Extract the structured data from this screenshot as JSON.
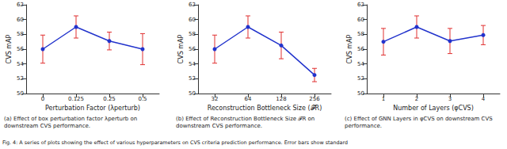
{
  "chart_data": [
    {
      "type": "line",
      "x_label": "Perturbation Factor (λperturb)",
      "y_label": "CVS mAP",
      "caption": "(a) Effect of box perturbation factor λperturb on downstream CVS performance.",
      "categories": [
        "0",
        "0.125",
        "0.25",
        "0.5"
      ],
      "values": [
        56.0,
        59.0,
        57.1,
        56.0
      ],
      "errors": [
        1.9,
        1.5,
        1.2,
        2.1
      ],
      "color": "#2233cc",
      "marker": "circle",
      "ylim": [
        50,
        62
      ],
      "yticks": [
        50,
        52,
        54,
        56,
        58,
        60,
        62
      ]
    },
    {
      "type": "line",
      "x_label": "Reconstruction Bottleneck Size (𝓕R)",
      "y_label": "CVS mAP",
      "caption": "(b) Effect of Reconstruction Bottleneck Size 𝓕R on downstream CVS performance.",
      "categories": [
        "32",
        "64",
        "128",
        "256"
      ],
      "values": [
        56.0,
        59.0,
        56.5,
        52.5
      ],
      "errors": [
        1.9,
        1.5,
        1.8,
        0.9
      ],
      "color": "#2233cc",
      "marker": "circle",
      "ylim": [
        50,
        62
      ],
      "yticks": [
        50,
        52,
        54,
        56,
        58,
        60,
        62
      ]
    },
    {
      "type": "line",
      "x_label": "Number of Layers (φCVS)",
      "y_label": "CVS mAP",
      "caption": "(c) Effect of GNN Layers in φCVS on downstream CVS performance.",
      "categories": [
        "1",
        "2",
        "3",
        "4"
      ],
      "values": [
        57.0,
        59.0,
        57.1,
        57.9
      ],
      "errors": [
        1.8,
        1.5,
        1.7,
        1.3
      ],
      "color": "#2233cc",
      "marker": "circle",
      "ylim": [
        50,
        62
      ],
      "yticks": [
        50,
        52,
        54,
        56,
        58,
        60,
        62
      ]
    }
  ],
  "figure_caption": "Fig. 4: A series of plots showing the effect of various hyperparameters on CVS criteria prediction performance. Error bars show standard"
}
